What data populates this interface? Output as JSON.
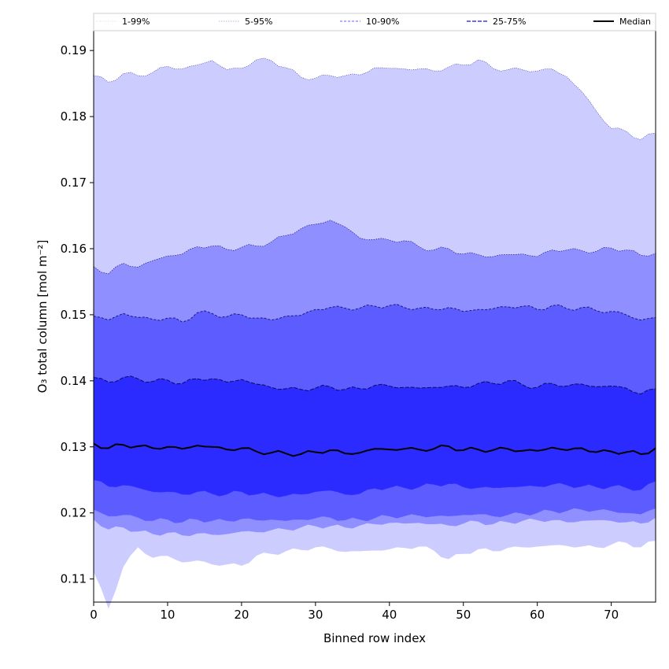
{
  "chart_data": {
    "type": "area",
    "title": "",
    "xlabel": "Binned row index",
    "ylabel": "O₃ total column [mol m⁻²]",
    "xlim": [
      0,
      76
    ],
    "ylim": [
      0.1065,
      0.193
    ],
    "xticks": [
      0,
      10,
      20,
      30,
      40,
      50,
      60,
      70
    ],
    "yticks": [
      0.11,
      0.12,
      0.13,
      0.14,
      0.15,
      0.16,
      0.17,
      0.18,
      0.19
    ],
    "legend_position": "top",
    "legend": [
      {
        "key": "p1_99",
        "label": "1-99%",
        "color": "#ccccff"
      },
      {
        "key": "p5_95",
        "label": "5-95%",
        "color": "#8f8fff"
      },
      {
        "key": "p10_90",
        "label": "10-90%",
        "color": "#5c5cff"
      },
      {
        "key": "p25_75",
        "label": "25-75%",
        "color": "#2b2bff"
      },
      {
        "key": "median",
        "label": "Median",
        "color": "#000000"
      }
    ],
    "x_anchor": [
      0,
      2,
      4,
      6,
      8,
      10,
      12,
      14,
      16,
      18,
      20,
      22,
      24,
      26,
      28,
      30,
      32,
      34,
      36,
      38,
      40,
      42,
      44,
      46,
      48,
      50,
      52,
      54,
      56,
      58,
      60,
      62,
      64,
      66,
      68,
      70,
      72,
      74,
      76
    ],
    "bands": {
      "p1": [
        0.111,
        0.1055,
        0.1118,
        0.1148,
        0.1132,
        0.1135,
        0.1125,
        0.1128,
        0.1122,
        0.1122,
        0.112,
        0.1135,
        0.1138,
        0.1142,
        0.1144,
        0.1148,
        0.1146,
        0.1141,
        0.1142,
        0.1143,
        0.1145,
        0.1147,
        0.1149,
        0.1143,
        0.113,
        0.1138,
        0.1145,
        0.1142,
        0.1147,
        0.1148,
        0.1149,
        0.1151,
        0.115,
        0.1149,
        0.1148,
        0.1152,
        0.1155,
        0.1148,
        0.1158
      ],
      "p5": [
        0.119,
        0.1175,
        0.1178,
        0.1172,
        0.1168,
        0.117,
        0.1166,
        0.1169,
        0.1167,
        0.1168,
        0.1172,
        0.1171,
        0.1174,
        0.1175,
        0.1178,
        0.118,
        0.118,
        0.1178,
        0.1181,
        0.1183,
        0.1185,
        0.1184,
        0.1185,
        0.1183,
        0.1181,
        0.1184,
        0.1187,
        0.1183,
        0.1186,
        0.1188,
        0.1189,
        0.1189,
        0.1186,
        0.1188,
        0.1189,
        0.1188,
        0.1186,
        0.1184,
        0.1193
      ],
      "p10": [
        0.1205,
        0.1195,
        0.1197,
        0.1193,
        0.1188,
        0.119,
        0.1186,
        0.119,
        0.1188,
        0.1188,
        0.1191,
        0.1189,
        0.119,
        0.1188,
        0.119,
        0.1192,
        0.1193,
        0.1189,
        0.119,
        0.1192,
        0.1195,
        0.1195,
        0.1196,
        0.1195,
        0.1195,
        0.1197,
        0.1198,
        0.1195,
        0.1197,
        0.1199,
        0.12,
        0.1203,
        0.1203,
        0.1205,
        0.1204,
        0.1203,
        0.12,
        0.1198,
        0.1207
      ],
      "p25": [
        0.125,
        0.124,
        0.1242,
        0.1238,
        0.1232,
        0.1232,
        0.1228,
        0.1232,
        0.1229,
        0.1228,
        0.1232,
        0.1228,
        0.1227,
        0.1226,
        0.1228,
        0.1232,
        0.1234,
        0.1228,
        0.1229,
        0.1237,
        0.1238,
        0.1238,
        0.1239,
        0.1243,
        0.1244,
        0.1239,
        0.1238,
        0.1238,
        0.1239,
        0.124,
        0.124,
        0.1243,
        0.1242,
        0.124,
        0.1239,
        0.124,
        0.1238,
        0.1235,
        0.1248
      ],
      "median": [
        0.1305,
        0.1298,
        0.1303,
        0.1301,
        0.1298,
        0.13,
        0.1297,
        0.1302,
        0.13,
        0.1296,
        0.1298,
        0.1293,
        0.1291,
        0.129,
        0.1289,
        0.1292,
        0.1295,
        0.129,
        0.1291,
        0.1297,
        0.1296,
        0.1297,
        0.1296,
        0.1297,
        0.1301,
        0.1295,
        0.1296,
        0.1295,
        0.1297,
        0.1294,
        0.1294,
        0.1299,
        0.1295,
        0.1298,
        0.1292,
        0.1293,
        0.1292,
        0.1289,
        0.1298
      ],
      "p75": [
        0.1405,
        0.1398,
        0.1405,
        0.1403,
        0.1399,
        0.1401,
        0.1396,
        0.1403,
        0.1403,
        0.1398,
        0.1402,
        0.1395,
        0.139,
        0.1388,
        0.1387,
        0.1389,
        0.1391,
        0.1387,
        0.1388,
        0.1393,
        0.1392,
        0.139,
        0.1389,
        0.139,
        0.1392,
        0.139,
        0.1396,
        0.1396,
        0.14,
        0.1394,
        0.139,
        0.1396,
        0.1392,
        0.1395,
        0.1391,
        0.1392,
        0.1389,
        0.138,
        0.1388
      ],
      "p90": [
        0.1498,
        0.1492,
        0.1502,
        0.1496,
        0.1493,
        0.1495,
        0.1489,
        0.1503,
        0.1502,
        0.1497,
        0.15,
        0.1495,
        0.1492,
        0.1498,
        0.1499,
        0.1508,
        0.1511,
        0.151,
        0.151,
        0.1513,
        0.1514,
        0.1511,
        0.151,
        0.1508,
        0.1511,
        0.1505,
        0.1508,
        0.1509,
        0.1512,
        0.1513,
        0.1508,
        0.1514,
        0.1509,
        0.1511,
        0.1506,
        0.1505,
        0.15,
        0.1492,
        0.1496
      ],
      "p95": [
        0.1573,
        0.1562,
        0.1578,
        0.1572,
        0.1582,
        0.1589,
        0.1592,
        0.1603,
        0.1604,
        0.1599,
        0.1602,
        0.1604,
        0.161,
        0.162,
        0.163,
        0.1637,
        0.1643,
        0.1633,
        0.1616,
        0.1614,
        0.1613,
        0.1612,
        0.1603,
        0.1598,
        0.16,
        0.1592,
        0.1591,
        0.1588,
        0.1591,
        0.1592,
        0.1588,
        0.1598,
        0.1598,
        0.1597,
        0.1596,
        0.1601,
        0.1598,
        0.159,
        0.1593
      ],
      "p99": [
        0.1862,
        0.1852,
        0.1865,
        0.1862,
        0.1867,
        0.1876,
        0.1872,
        0.1878,
        0.1885,
        0.1871,
        0.1873,
        0.1886,
        0.1885,
        0.1874,
        0.186,
        0.1858,
        0.1862,
        0.1862,
        0.1863,
        0.1874,
        0.1873,
        0.1872,
        0.1872,
        0.1869,
        0.1875,
        0.1878,
        0.1886,
        0.1873,
        0.1871,
        0.1871,
        0.1869,
        0.1872,
        0.186,
        0.1838,
        0.1808,
        0.1782,
        0.1778,
        0.1765,
        0.1775
      ]
    }
  }
}
